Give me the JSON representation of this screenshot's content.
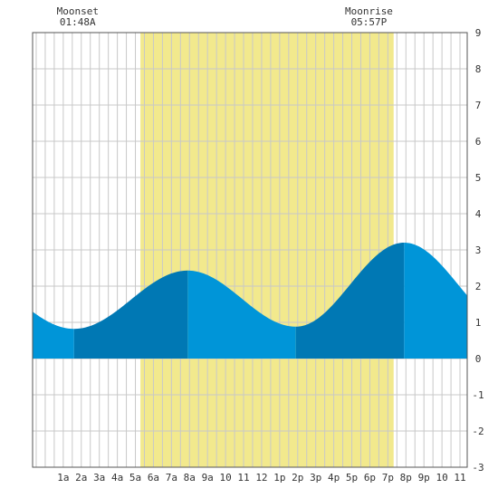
{
  "chart_data": {
    "type": "area",
    "x_unit": "hour of day",
    "xlim": [
      -0.7,
      23.4
    ],
    "ylim": [
      -3,
      9
    ],
    "y_ticks": [
      -3,
      -2,
      -1,
      0,
      1,
      2,
      3,
      4,
      5,
      6,
      7,
      8,
      9
    ],
    "x_ticks": [
      {
        "x": 1,
        "label": "1a"
      },
      {
        "x": 2,
        "label": "2a"
      },
      {
        "x": 3,
        "label": "3a"
      },
      {
        "x": 4,
        "label": "4a"
      },
      {
        "x": 5,
        "label": "5a"
      },
      {
        "x": 6,
        "label": "6a"
      },
      {
        "x": 7,
        "label": "7a"
      },
      {
        "x": 8,
        "label": "8a"
      },
      {
        "x": 9,
        "label": "9a"
      },
      {
        "x": 10,
        "label": "10"
      },
      {
        "x": 11,
        "label": "11"
      },
      {
        "x": 12,
        "label": "12"
      },
      {
        "x": 13,
        "label": "1p"
      },
      {
        "x": 14,
        "label": "2p"
      },
      {
        "x": 15,
        "label": "3p"
      },
      {
        "x": 16,
        "label": "4p"
      },
      {
        "x": 17,
        "label": "5p"
      },
      {
        "x": 18,
        "label": "6p"
      },
      {
        "x": 19,
        "label": "7p"
      },
      {
        "x": 20,
        "label": "8p"
      },
      {
        "x": 21,
        "label": "9p"
      },
      {
        "x": 22,
        "label": "10"
      },
      {
        "x": 23,
        "label": "11"
      }
    ],
    "daylight": [
      5.28,
      19.32
    ],
    "extremes": [
      {
        "x": 1.6,
        "y": 0.82
      },
      {
        "x": 7.9,
        "y": 2.43
      },
      {
        "x": 13.9,
        "y": 0.88
      },
      {
        "x": 19.9,
        "y": 3.2
      }
    ],
    "edges": {
      "start_y": 1.45,
      "end_y": 1.85
    },
    "annotations": [
      {
        "name": "moonset",
        "label": "Moonset",
        "time": "01:48A",
        "x": 1.8
      },
      {
        "name": "moonrise",
        "label": "Moonrise",
        "time": "05:57P",
        "x": 17.95
      }
    ],
    "grid": true,
    "colors": {
      "daylight": "#f2e98d",
      "tide_light": "#0095d8",
      "tide_dark": "#0078b4",
      "grid": "#c8c8c8",
      "axis": "#555555",
      "text": "#333333"
    }
  },
  "annotations": {
    "moonset": {
      "label": "Moonset",
      "time": "01:48A"
    },
    "moonrise": {
      "label": "Moonrise",
      "time": "05:57P"
    }
  }
}
